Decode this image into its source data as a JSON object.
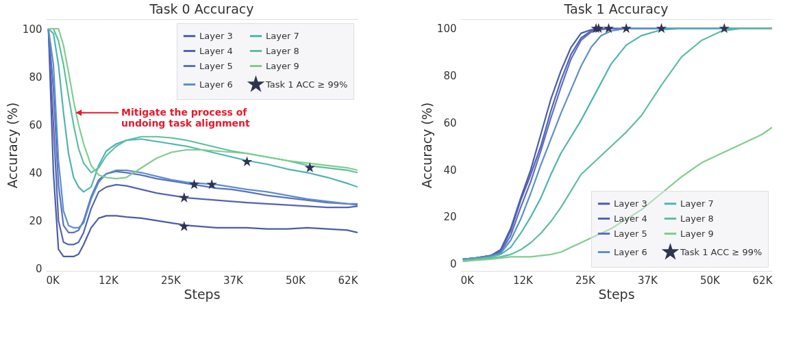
{
  "chart_data": [
    {
      "type": "line",
      "title": "Task 0 Accuracy",
      "xlabel": "Steps",
      "ylabel": "Accuracy (%)",
      "xlim": [
        0,
        62000
      ],
      "ylim": [
        -1,
        104
      ],
      "xticks": [
        {
          "value": 0,
          "label": "0K"
        },
        {
          "value": 12400,
          "label": "12K"
        },
        {
          "value": 24800,
          "label": "25K"
        },
        {
          "value": 37200,
          "label": "37K"
        },
        {
          "value": 49600,
          "label": "50K"
        },
        {
          "value": 62000,
          "label": "62K"
        }
      ],
      "yticks": [
        0,
        20,
        40,
        60,
        80,
        100
      ],
      "grid": true,
      "legend": "top right",
      "line_style": "solid",
      "x": [
        500,
        1500,
        2500,
        3500,
        4500,
        5500,
        6500,
        7500,
        9000,
        10500,
        12000,
        14000,
        16000,
        19000,
        22000,
        25000,
        28000,
        31000,
        34000,
        37000,
        40000,
        44000,
        48000,
        52000,
        56000,
        60000,
        62000
      ],
      "series": [
        {
          "name": "Layer 3",
          "color": "#4a5ca8",
          "values": [
            100,
            40,
            8,
            5,
            5,
            5,
            6,
            10,
            17,
            21,
            22,
            22,
            21.5,
            21,
            20,
            19,
            18,
            17.5,
            17,
            17,
            17,
            16.5,
            16.5,
            17,
            16.5,
            16,
            15
          ]
        },
        {
          "name": "Layer 4",
          "color": "#5363b2",
          "values": [
            100,
            60,
            20,
            11,
            10,
            10,
            11,
            15,
            25,
            32,
            34,
            35,
            34.5,
            33,
            31.5,
            30.5,
            29.5,
            29,
            28.5,
            28,
            27.5,
            27,
            26.5,
            26,
            25.5,
            25.5,
            26
          ]
        },
        {
          "name": "Layer 5",
          "color": "#5c6fc2",
          "values": [
            100,
            75,
            35,
            18,
            15,
            15,
            16,
            20,
            30,
            37,
            39.5,
            40.5,
            40,
            39,
            37.5,
            36.5,
            35.5,
            34.5,
            33.5,
            33,
            32,
            30.5,
            29.5,
            28.5,
            27.5,
            27,
            26.5
          ]
        },
        {
          "name": "Layer 6",
          "color": "#5b8fcb",
          "values": [
            100,
            85,
            45,
            24,
            18,
            17,
            17,
            19,
            29,
            36,
            39.5,
            41,
            41,
            40,
            38.5,
            37,
            36,
            35.5,
            35,
            34,
            33,
            32,
            30.5,
            29,
            28,
            27,
            27
          ]
        },
        {
          "name": "Layer 7",
          "color": "#4fb3b2",
          "values": [
            100,
            98,
            85,
            65,
            48,
            38,
            34,
            32,
            34,
            43,
            49,
            52,
            53.5,
            54,
            53,
            52,
            51,
            49.5,
            48,
            46.5,
            45,
            43.5,
            41.5,
            40,
            38,
            35.5,
            34
          ]
        },
        {
          "name": "Layer 8",
          "color": "#5cbf9c",
          "values": [
            100,
            100,
            95,
            85,
            72,
            60,
            50,
            44,
            40,
            42,
            47,
            51,
            53.5,
            55,
            55,
            54.5,
            53.5,
            52,
            50.5,
            49,
            48,
            46.5,
            45,
            43,
            42,
            41,
            40
          ]
        },
        {
          "name": "Layer 9",
          "color": "#80cc8c",
          "values": [
            100,
            100,
            100,
            93,
            82,
            70,
            60,
            52,
            43,
            39,
            38,
            37.5,
            38,
            42,
            46,
            48.5,
            49.5,
            49.5,
            49,
            48.5,
            48,
            46.5,
            45,
            44,
            43,
            42,
            41
          ]
        },
        {
          "name": "Task 1 ACC ≥ 99%",
          "type": "scatter",
          "marker": "star",
          "color": "#2e3452",
          "x": [
            27500,
            27500,
            29500,
            33000,
            40000,
            52500
          ],
          "values": [
            17.5,
            29.5,
            35,
            35,
            44.5,
            42
          ]
        }
      ],
      "annotations": [
        {
          "text": "Mitigate the process of\nundoing task alignment",
          "x": 6000,
          "y": 65
        }
      ]
    },
    {
      "type": "line",
      "title": "Task 1 Accuracy",
      "xlabel": "Steps",
      "ylabel": "Accuracy (%)",
      "xlim": [
        0,
        62000
      ],
      "ylim": [
        -3,
        104
      ],
      "xticks": [
        {
          "value": 0,
          "label": "0K"
        },
        {
          "value": 12400,
          "label": "12K"
        },
        {
          "value": 24800,
          "label": "25K"
        },
        {
          "value": 37200,
          "label": "37K"
        },
        {
          "value": 49600,
          "label": "50K"
        },
        {
          "value": 62000,
          "label": "62K"
        }
      ],
      "yticks": [
        0,
        20,
        40,
        60,
        80,
        100
      ],
      "grid": true,
      "legend": "bottom right",
      "line_style": "solid",
      "x": [
        500,
        3000,
        6000,
        8000,
        10000,
        12000,
        14000,
        16000,
        18000,
        20000,
        22000,
        24000,
        26000,
        28000,
        30000,
        33000,
        36000,
        40000,
        44000,
        48000,
        52000,
        56000,
        60000,
        62000
      ],
      "series": [
        {
          "name": "Layer 3",
          "color": "#4a5ca8",
          "values": [
            2,
            2.5,
            3.5,
            6,
            15,
            28,
            40,
            55,
            70,
            82,
            92,
            98,
            99.5,
            100,
            100,
            100,
            100,
            100,
            100,
            100,
            100,
            100,
            100,
            100
          ]
        },
        {
          "name": "Layer 4",
          "color": "#5363b2",
          "values": [
            2,
            2.5,
            3.5,
            5.5,
            14,
            27,
            38,
            50,
            65,
            78,
            89,
            96,
            99,
            100,
            100,
            100,
            100,
            100,
            100,
            100,
            100,
            100,
            100,
            100
          ]
        },
        {
          "name": "Layer 5",
          "color": "#5c6fc2",
          "values": [
            2,
            2.5,
            3.5,
            5,
            12,
            24,
            35,
            48,
            62,
            75,
            87,
            95,
            98.5,
            99.5,
            100,
            100,
            100,
            100,
            100,
            100,
            100,
            100,
            100,
            100
          ]
        },
        {
          "name": "Layer 6",
          "color": "#5b8fcb",
          "values": [
            2,
            2.5,
            3,
            4.5,
            10,
            19,
            30,
            42,
            53,
            64,
            74,
            84,
            92,
            97,
            99,
            100,
            100,
            100,
            100,
            100,
            100,
            100,
            100,
            100
          ]
        },
        {
          "name": "Layer 7",
          "color": "#4fb3b2",
          "values": [
            1.5,
            2,
            3,
            4,
            7,
            13,
            20,
            28,
            38,
            47,
            54,
            61,
            69,
            77,
            85,
            93,
            97,
            99.5,
            100,
            100,
            100,
            100,
            100,
            100
          ]
        },
        {
          "name": "Layer 8",
          "color": "#5cbf9c",
          "values": [
            1.5,
            2,
            2.5,
            3,
            4,
            6,
            9,
            13,
            18,
            24,
            31,
            38,
            42,
            46,
            50,
            56,
            63,
            76,
            88,
            95,
            99,
            100,
            100,
            100
          ]
        },
        {
          "name": "Layer 9",
          "color": "#80cc8c",
          "values": [
            1,
            1.5,
            2,
            2.5,
            3,
            3,
            3,
            3.5,
            4,
            5,
            7,
            9,
            11,
            13,
            15,
            19,
            23,
            30,
            37,
            43,
            47,
            51,
            55,
            58
          ]
        },
        {
          "name": "Task 1 ACC ≥ 99%",
          "type": "scatter",
          "marker": "star",
          "color": "#2e3452",
          "x": [
            27000,
            27500,
            29500,
            33000,
            40000,
            52500
          ],
          "values": [
            100,
            100,
            100,
            100,
            100,
            100
          ]
        }
      ]
    }
  ]
}
